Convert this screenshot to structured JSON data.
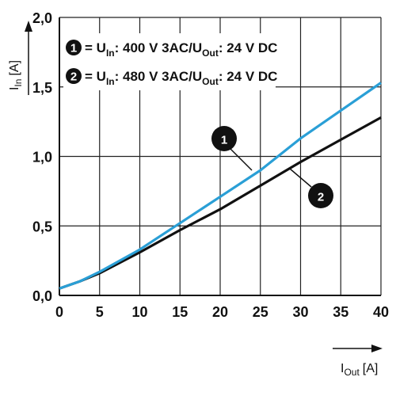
{
  "chart_data": {
    "type": "line",
    "x_axis": {
      "label": "I",
      "label_sub": "Out",
      "unit": "[A]",
      "min": 0,
      "max": 40,
      "ticks": [
        "0",
        "5",
        "10",
        "15",
        "20",
        "25",
        "30",
        "35",
        "40"
      ],
      "tick_values": [
        0,
        5,
        10,
        15,
        20,
        25,
        30,
        35,
        40
      ]
    },
    "y_axis": {
      "label": "I",
      "label_sub": "In",
      "unit": "[A]",
      "min": 0,
      "max": 2,
      "ticks": [
        "0,0",
        "0,5",
        "1,0",
        "1,5",
        "2,0"
      ],
      "tick_values": [
        0,
        0.5,
        1.0,
        1.5,
        2.0
      ]
    },
    "grid": true,
    "legend_placement": "top-left",
    "series": [
      {
        "name": "1",
        "color": "#2a9fd6",
        "legend": {
          "prefix": "= U",
          "sub1": "In",
          "mid": ": 400 V 3AC/U",
          "sub2": "Out",
          "suffix": ": 24 V DC"
        },
        "x": [
          0,
          2.5,
          5,
          10,
          15,
          20,
          25,
          30,
          35,
          40
        ],
        "y": [
          0.05,
          0.1,
          0.17,
          0.33,
          0.52,
          0.71,
          0.9,
          1.13,
          1.33,
          1.53
        ]
      },
      {
        "name": "2",
        "color": "#111111",
        "legend": {
          "prefix": "= U",
          "sub1": "In",
          "mid": ": 480 V 3AC/U",
          "sub2": "Out",
          "suffix": ": 24 V DC"
        },
        "x": [
          0,
          2.5,
          5,
          10,
          15,
          20,
          25,
          30,
          35,
          40
        ],
        "y": [
          0.05,
          0.1,
          0.16,
          0.31,
          0.47,
          0.62,
          0.79,
          0.96,
          1.12,
          1.28
        ]
      }
    ],
    "annotations": [
      {
        "label": "1",
        "series": "1",
        "x": 25,
        "y": 0.9
      },
      {
        "label": "2",
        "series": "2",
        "x": 29,
        "y": 0.92
      }
    ]
  }
}
